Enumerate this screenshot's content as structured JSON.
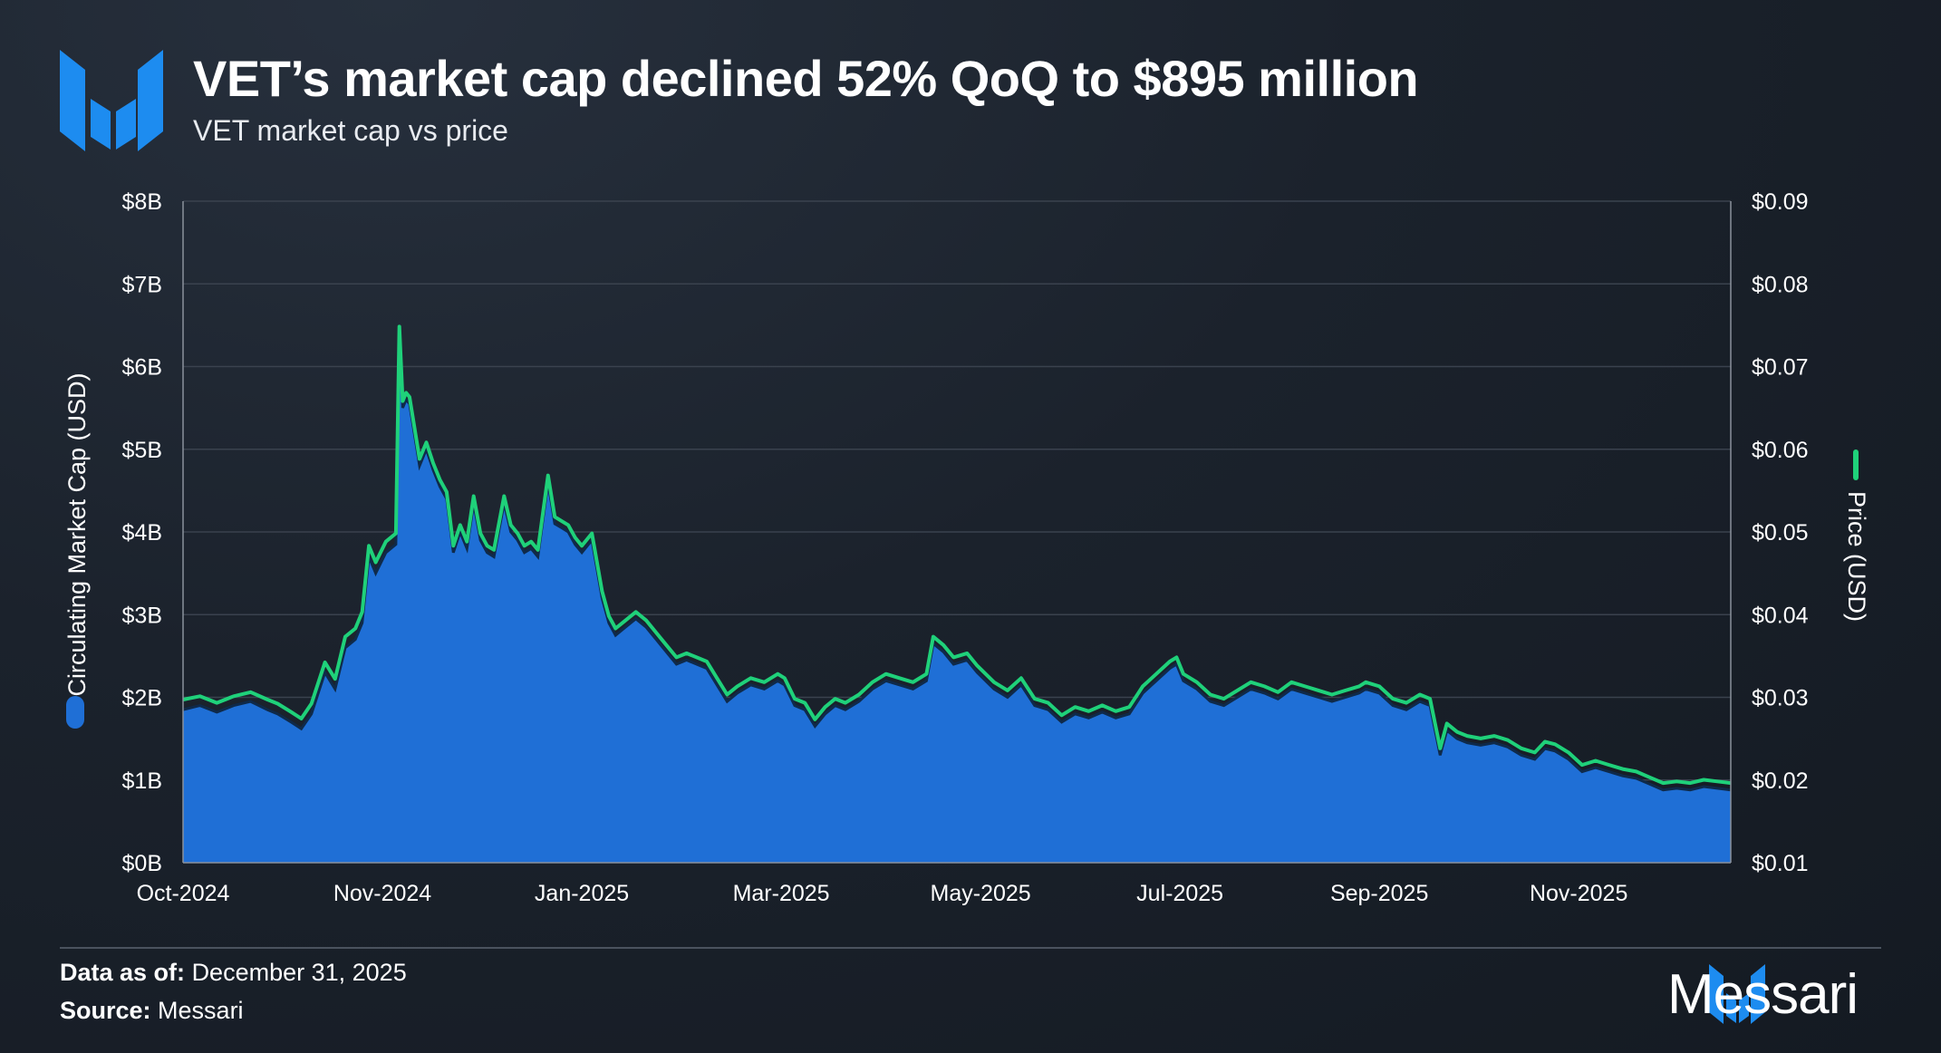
{
  "header": {
    "title": "VET’s market cap declined 52% QoQ to $895 million",
    "subtitle": "VET market cap vs price"
  },
  "footer": {
    "data_as_of_label": "Data as of:",
    "data_as_of_value": "December 31, 2025",
    "source_label": "Source:",
    "source_value": "Messari",
    "brand": "Messari"
  },
  "colors": {
    "market_cap_fill": "#1f6fd6",
    "price_line": "#1fd17a",
    "grid": "#3a424e",
    "brand_blue": "#1d8cf0"
  },
  "chart_data": {
    "type": "area",
    "title": "VET market cap vs price",
    "x_tick_labels": [
      "Oct-2024",
      "Nov-2024",
      "Jan-2025",
      "Mar-2025",
      "May-2025",
      "Jul-2025",
      "Sep-2025",
      "Nov-2025"
    ],
    "x_range_days": [
      0,
      458
    ],
    "x_tick_days": [
      0,
      59,
      118,
      177,
      236,
      295,
      354,
      413
    ],
    "y_left": {
      "label": "Circulating Market Cap (USD)",
      "ticks": [
        "$0B",
        "$1B",
        "$2B",
        "$3B",
        "$4B",
        "$5B",
        "$6B",
        "$7B",
        "$8B"
      ],
      "range": [
        0,
        8
      ]
    },
    "y_right": {
      "label": "Price (USD)",
      "ticks": [
        "$0.01",
        "$0.02",
        "$0.03",
        "$0.04",
        "$0.05",
        "$0.06",
        "$0.07",
        "$0.08",
        "$0.09"
      ],
      "range": [
        0.01,
        0.09
      ]
    },
    "legend": [
      "Circulating Market Cap (USD)",
      "Price (USD)"
    ],
    "series": [
      {
        "name": "Circulating Market Cap (USD)",
        "unit": "billion USD",
        "points": [
          [
            0,
            1.85
          ],
          [
            5,
            1.9
          ],
          [
            10,
            1.82
          ],
          [
            15,
            1.9
          ],
          [
            20,
            1.95
          ],
          [
            25,
            1.85
          ],
          [
            28,
            1.8
          ],
          [
            32,
            1.7
          ],
          [
            35,
            1.62
          ],
          [
            38,
            1.8
          ],
          [
            42,
            2.3
          ],
          [
            45,
            2.1
          ],
          [
            48,
            2.6
          ],
          [
            51,
            2.7
          ],
          [
            53,
            2.9
          ],
          [
            55,
            3.7
          ],
          [
            57,
            3.5
          ],
          [
            60,
            3.75
          ],
          [
            63,
            3.85
          ],
          [
            64,
            6.45
          ],
          [
            65,
            5.5
          ],
          [
            66,
            5.6
          ],
          [
            67,
            5.55
          ],
          [
            70,
            4.8
          ],
          [
            72,
            5.0
          ],
          [
            74,
            4.75
          ],
          [
            76,
            4.55
          ],
          [
            78,
            4.4
          ],
          [
            80,
            3.75
          ],
          [
            82,
            4.0
          ],
          [
            84,
            3.8
          ],
          [
            86,
            4.35
          ],
          [
            88,
            3.9
          ],
          [
            90,
            3.75
          ],
          [
            92,
            3.7
          ],
          [
            95,
            4.35
          ],
          [
            97,
            4.0
          ],
          [
            99,
            3.9
          ],
          [
            101,
            3.75
          ],
          [
            103,
            3.8
          ],
          [
            105,
            3.7
          ],
          [
            108,
            4.6
          ],
          [
            110,
            4.1
          ],
          [
            112,
            4.05
          ],
          [
            114,
            4.0
          ],
          [
            116,
            3.85
          ],
          [
            118,
            3.75
          ],
          [
            121,
            3.9
          ],
          [
            124,
            3.2
          ],
          [
            126,
            2.9
          ],
          [
            128,
            2.75
          ],
          [
            131,
            2.85
          ],
          [
            134,
            2.95
          ],
          [
            137,
            2.85
          ],
          [
            140,
            2.7
          ],
          [
            143,
            2.55
          ],
          [
            146,
            2.4
          ],
          [
            149,
            2.45
          ],
          [
            152,
            2.4
          ],
          [
            155,
            2.35
          ],
          [
            158,
            2.15
          ],
          [
            161,
            1.95
          ],
          [
            164,
            2.05
          ],
          [
            168,
            2.15
          ],
          [
            172,
            2.1
          ],
          [
            176,
            2.2
          ],
          [
            178,
            2.15
          ],
          [
            181,
            1.9
          ],
          [
            184,
            1.85
          ],
          [
            187,
            1.65
          ],
          [
            190,
            1.8
          ],
          [
            193,
            1.9
          ],
          [
            196,
            1.85
          ],
          [
            200,
            1.95
          ],
          [
            204,
            2.1
          ],
          [
            208,
            2.2
          ],
          [
            212,
            2.15
          ],
          [
            216,
            2.1
          ],
          [
            220,
            2.2
          ],
          [
            222,
            2.65
          ],
          [
            225,
            2.55
          ],
          [
            228,
            2.4
          ],
          [
            232,
            2.45
          ],
          [
            235,
            2.3
          ],
          [
            240,
            2.1
          ],
          [
            244,
            2.0
          ],
          [
            248,
            2.15
          ],
          [
            252,
            1.9
          ],
          [
            256,
            1.85
          ],
          [
            260,
            1.7
          ],
          [
            264,
            1.8
          ],
          [
            268,
            1.75
          ],
          [
            272,
            1.82
          ],
          [
            276,
            1.75
          ],
          [
            280,
            1.8
          ],
          [
            284,
            2.05
          ],
          [
            288,
            2.2
          ],
          [
            292,
            2.35
          ],
          [
            294,
            2.4
          ],
          [
            296,
            2.2
          ],
          [
            300,
            2.1
          ],
          [
            304,
            1.95
          ],
          [
            308,
            1.9
          ],
          [
            312,
            2.0
          ],
          [
            316,
            2.1
          ],
          [
            320,
            2.05
          ],
          [
            324,
            1.98
          ],
          [
            328,
            2.1
          ],
          [
            332,
            2.05
          ],
          [
            336,
            2.0
          ],
          [
            340,
            1.95
          ],
          [
            344,
            2.0
          ],
          [
            348,
            2.05
          ],
          [
            350,
            2.1
          ],
          [
            354,
            2.05
          ],
          [
            358,
            1.9
          ],
          [
            362,
            1.85
          ],
          [
            366,
            1.95
          ],
          [
            369,
            1.9
          ],
          [
            372,
            1.3
          ],
          [
            374,
            1.6
          ],
          [
            377,
            1.5
          ],
          [
            380,
            1.45
          ],
          [
            384,
            1.42
          ],
          [
            388,
            1.45
          ],
          [
            392,
            1.4
          ],
          [
            396,
            1.3
          ],
          [
            400,
            1.25
          ],
          [
            403,
            1.38
          ],
          [
            406,
            1.35
          ],
          [
            410,
            1.25
          ],
          [
            414,
            1.1
          ],
          [
            418,
            1.15
          ],
          [
            422,
            1.1
          ],
          [
            426,
            1.05
          ],
          [
            430,
            1.02
          ],
          [
            434,
            0.95
          ],
          [
            438,
            0.88
          ],
          [
            442,
            0.9
          ],
          [
            446,
            0.88
          ],
          [
            450,
            0.92
          ],
          [
            454,
            0.9
          ],
          [
            458,
            0.88
          ]
        ]
      },
      {
        "name": "Price (USD)",
        "unit": "USD",
        "points": [
          [
            0,
            0.0294
          ],
          [
            5,
            0.0298
          ],
          [
            10,
            0.029
          ],
          [
            15,
            0.0298
          ],
          [
            20,
            0.0303
          ],
          [
            25,
            0.0294
          ],
          [
            28,
            0.0289
          ],
          [
            32,
            0.0279
          ],
          [
            35,
            0.0271
          ],
          [
            38,
            0.0289
          ],
          [
            42,
            0.0339
          ],
          [
            45,
            0.0319
          ],
          [
            48,
            0.037
          ],
          [
            51,
            0.038
          ],
          [
            53,
            0.04
          ],
          [
            55,
            0.048
          ],
          [
            57,
            0.046
          ],
          [
            60,
            0.0485
          ],
          [
            63,
            0.0495
          ],
          [
            64,
            0.0745
          ],
          [
            65,
            0.0655
          ],
          [
            66,
            0.0665
          ],
          [
            67,
            0.066
          ],
          [
            70,
            0.0585
          ],
          [
            72,
            0.0605
          ],
          [
            74,
            0.058
          ],
          [
            76,
            0.056
          ],
          [
            78,
            0.0545
          ],
          [
            80,
            0.048
          ],
          [
            82,
            0.0505
          ],
          [
            84,
            0.0485
          ],
          [
            86,
            0.054
          ],
          [
            88,
            0.0495
          ],
          [
            90,
            0.048
          ],
          [
            92,
            0.0475
          ],
          [
            95,
            0.054
          ],
          [
            97,
            0.0505
          ],
          [
            99,
            0.0495
          ],
          [
            101,
            0.048
          ],
          [
            103,
            0.0485
          ],
          [
            105,
            0.0475
          ],
          [
            108,
            0.0565
          ],
          [
            110,
            0.0515
          ],
          [
            112,
            0.051
          ],
          [
            114,
            0.0505
          ],
          [
            116,
            0.049
          ],
          [
            118,
            0.048
          ],
          [
            121,
            0.0495
          ],
          [
            124,
            0.0425
          ],
          [
            126,
            0.0395
          ],
          [
            128,
            0.038
          ],
          [
            131,
            0.039
          ],
          [
            134,
            0.04
          ],
          [
            137,
            0.039
          ],
          [
            140,
            0.0375
          ],
          [
            143,
            0.036
          ],
          [
            146,
            0.0345
          ],
          [
            149,
            0.035
          ],
          [
            152,
            0.0345
          ],
          [
            155,
            0.034
          ],
          [
            158,
            0.032
          ],
          [
            161,
            0.03
          ],
          [
            164,
            0.031
          ],
          [
            168,
            0.032
          ],
          [
            172,
            0.0315
          ],
          [
            176,
            0.0325
          ],
          [
            178,
            0.032
          ],
          [
            181,
            0.0295
          ],
          [
            184,
            0.029
          ],
          [
            187,
            0.027
          ],
          [
            190,
            0.0285
          ],
          [
            193,
            0.0295
          ],
          [
            196,
            0.029
          ],
          [
            200,
            0.03
          ],
          [
            204,
            0.0315
          ],
          [
            208,
            0.0325
          ],
          [
            212,
            0.032
          ],
          [
            216,
            0.0315
          ],
          [
            220,
            0.0325
          ],
          [
            222,
            0.037
          ],
          [
            225,
            0.036
          ],
          [
            228,
            0.0345
          ],
          [
            232,
            0.035
          ],
          [
            235,
            0.0335
          ],
          [
            240,
            0.0315
          ],
          [
            244,
            0.0305
          ],
          [
            248,
            0.032
          ],
          [
            252,
            0.0295
          ],
          [
            256,
            0.029
          ],
          [
            260,
            0.0275
          ],
          [
            264,
            0.0285
          ],
          [
            268,
            0.028
          ],
          [
            272,
            0.0287
          ],
          [
            276,
            0.028
          ],
          [
            280,
            0.0285
          ],
          [
            284,
            0.031
          ],
          [
            288,
            0.0325
          ],
          [
            292,
            0.034
          ],
          [
            294,
            0.0345
          ],
          [
            296,
            0.0325
          ],
          [
            300,
            0.0315
          ],
          [
            304,
            0.03
          ],
          [
            308,
            0.0295
          ],
          [
            312,
            0.0305
          ],
          [
            316,
            0.0315
          ],
          [
            320,
            0.031
          ],
          [
            324,
            0.0303
          ],
          [
            328,
            0.0315
          ],
          [
            332,
            0.031
          ],
          [
            336,
            0.0305
          ],
          [
            340,
            0.03
          ],
          [
            344,
            0.0305
          ],
          [
            348,
            0.031
          ],
          [
            350,
            0.0315
          ],
          [
            354,
            0.031
          ],
          [
            358,
            0.0295
          ],
          [
            362,
            0.029
          ],
          [
            366,
            0.03
          ],
          [
            369,
            0.0295
          ],
          [
            372,
            0.0235
          ],
          [
            374,
            0.0265
          ],
          [
            377,
            0.0255
          ],
          [
            380,
            0.025
          ],
          [
            384,
            0.0247
          ],
          [
            388,
            0.025
          ],
          [
            392,
            0.0245
          ],
          [
            396,
            0.0235
          ],
          [
            400,
            0.023
          ],
          [
            403,
            0.0243
          ],
          [
            406,
            0.024
          ],
          [
            410,
            0.023
          ],
          [
            414,
            0.0215
          ],
          [
            418,
            0.022
          ],
          [
            422,
            0.0215
          ],
          [
            426,
            0.021
          ],
          [
            430,
            0.0207
          ],
          [
            434,
            0.02
          ],
          [
            438,
            0.0193
          ],
          [
            442,
            0.0195
          ],
          [
            446,
            0.0193
          ],
          [
            450,
            0.0197
          ],
          [
            454,
            0.0195
          ],
          [
            458,
            0.0193
          ]
        ]
      }
    ]
  }
}
